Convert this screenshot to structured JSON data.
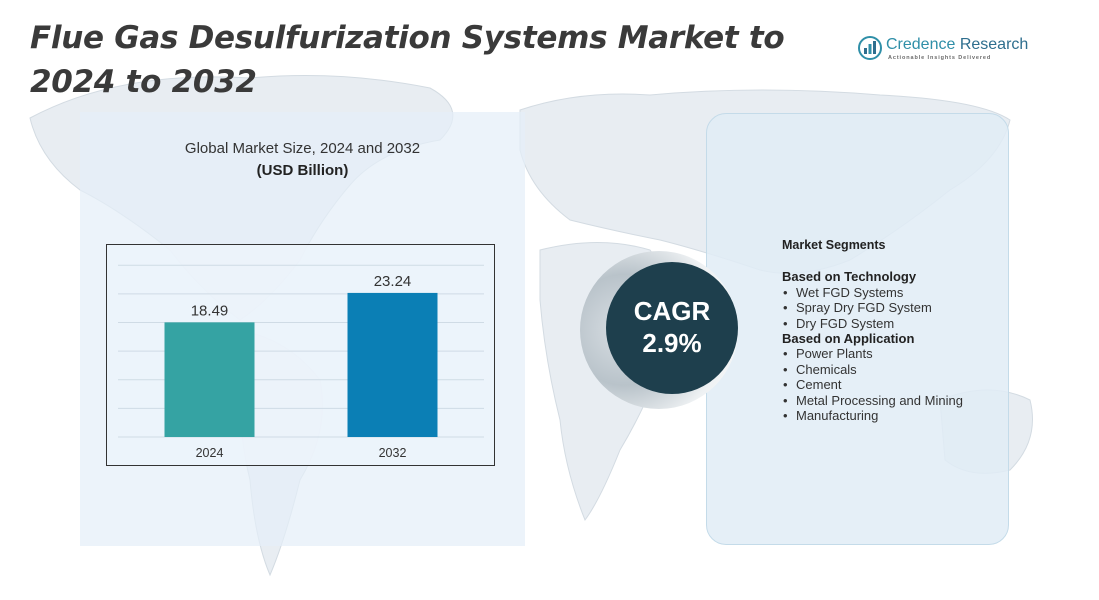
{
  "page": {
    "title": "Flue Gas Desulfurization Systems Market to 2024 to 2032"
  },
  "logo": {
    "name_part1": "Credence",
    "name_part2": "Research",
    "tagline": "Actionable Insights Delivered",
    "icon": "bar-chart-logo-icon"
  },
  "chart_data": {
    "type": "bar",
    "title": "Global Market Size, 2024 and 2032",
    "ylabel": "(USD Billion)",
    "xlabel": "",
    "categories": [
      "2024",
      "2032"
    ],
    "values": [
      18.49,
      23.24
    ],
    "value_labels": [
      "18.49",
      "23.24"
    ],
    "ylim": [
      0,
      30
    ],
    "grid": true,
    "bar_colors": [
      "#35a3a3",
      "#0b7fb5"
    ]
  },
  "cagr": {
    "label": "CAGR",
    "value": "2.9%"
  },
  "segments": {
    "heading": "Market Segments",
    "groups": [
      {
        "title": "Based on Technology",
        "items": [
          "Wet FGD Systems",
          "Spray Dry FGD System",
          "Dry FGD System"
        ]
      },
      {
        "title": "Based on Application",
        "items": [
          "Power Plants",
          "Chemicals",
          "Cement",
          "Metal Processing and Mining",
          "Manufacturing"
        ]
      }
    ]
  },
  "colors": {
    "title_text": "#3a3a3a",
    "cagr_circle": "#1e3f4d",
    "panel_bg": "#e4eef8",
    "map_fill": "#e7ecf1"
  }
}
